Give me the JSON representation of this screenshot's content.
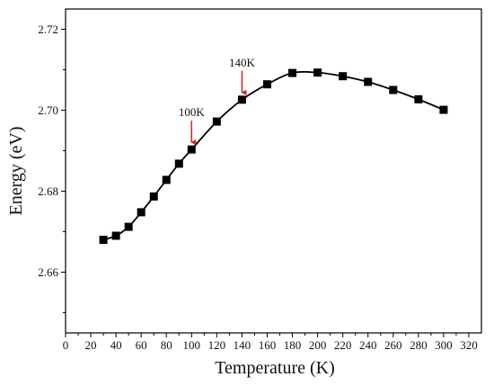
{
  "chart_data": {
    "type": "line",
    "title": "",
    "xlabel": "Temperature (K)",
    "ylabel": "Energy (eV)",
    "xlim": [
      0,
      330
    ],
    "ylim": [
      2.645,
      2.725
    ],
    "x_ticks": [
      0,
      20,
      40,
      60,
      80,
      100,
      120,
      140,
      160,
      180,
      200,
      220,
      240,
      260,
      280,
      300,
      320
    ],
    "x_tick_labels": [
      "0",
      "20",
      "40",
      "60",
      "80",
      "100",
      "120",
      "140",
      "160",
      "180",
      "200",
      "220",
      "240",
      "260",
      "280",
      "300",
      "320"
    ],
    "y_ticks": [
      2.66,
      2.68,
      2.7,
      2.72
    ],
    "y_tick_labels": [
      "2.66",
      "2.68",
      "2.70",
      "2.72"
    ],
    "series": [
      {
        "x": [
          30,
          40,
          50,
          60,
          70,
          80,
          90,
          100,
          120,
          140,
          160,
          180,
          200,
          220,
          240,
          260,
          280,
          300
        ],
        "y": [
          2.668,
          2.669,
          2.6712,
          2.6748,
          2.6787,
          2.6828,
          2.6868,
          2.6903,
          2.6972,
          2.7026,
          2.7064,
          2.7092,
          2.7093,
          2.7084,
          2.707,
          2.705,
          2.7027,
          2.7001
        ]
      }
    ],
    "marker": "square",
    "line_color": "#000000",
    "marker_color": "#000000",
    "grid": false,
    "annotations": [
      {
        "label": "100K",
        "x": 100,
        "y": 2.6903,
        "arrow_color": "#d42020"
      },
      {
        "label": "140K",
        "x": 140,
        "y": 2.7026,
        "arrow_color": "#d42020"
      }
    ]
  }
}
